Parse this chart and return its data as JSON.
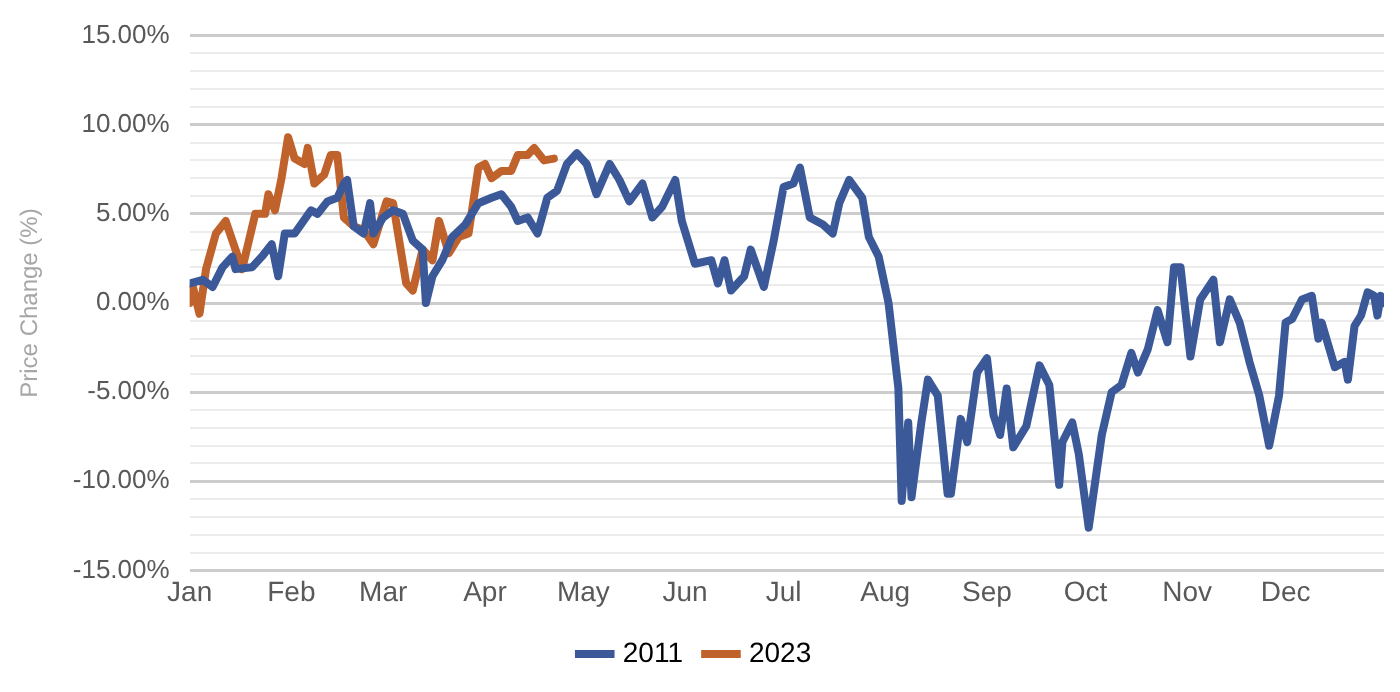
{
  "chart_data": {
    "type": "line",
    "ylabel": "Price Change (%)",
    "xlim": [
      "--01-01",
      "--12-31"
    ],
    "xticks": [
      {
        "value": "--01-01",
        "label": "Jan"
      },
      {
        "value": "--02-01",
        "label": "Feb"
      },
      {
        "value": "--03-01",
        "label": "Mar"
      },
      {
        "value": "--04-01",
        "label": "Apr"
      },
      {
        "value": "--05-01",
        "label": "May"
      },
      {
        "value": "--06-01",
        "label": "Jun"
      },
      {
        "value": "--07-01",
        "label": "Jul"
      },
      {
        "value": "--08-01",
        "label": "Aug"
      },
      {
        "value": "--09-01",
        "label": "Sep"
      },
      {
        "value": "--10-01",
        "label": "Oct"
      },
      {
        "value": "--11-01",
        "label": "Nov"
      },
      {
        "value": "--12-01",
        "label": "Dec"
      }
    ],
    "ylim": [
      -15,
      15
    ],
    "yticks": [
      {
        "value": -15,
        "label": "-15.00%"
      },
      {
        "value": -14,
        "label": null
      },
      {
        "value": -13,
        "label": null
      },
      {
        "value": -12,
        "label": null
      },
      {
        "value": -11,
        "label": null
      },
      {
        "value": -10,
        "label": "-10.00%"
      },
      {
        "value": -9,
        "label": null
      },
      {
        "value": -8,
        "label": null
      },
      {
        "value": -7,
        "label": null
      },
      {
        "value": -6,
        "label": null
      },
      {
        "value": -5,
        "label": "-5.00%"
      },
      {
        "value": -4,
        "label": null
      },
      {
        "value": -3,
        "label": null
      },
      {
        "value": -2,
        "label": null
      },
      {
        "value": -1,
        "label": null
      },
      {
        "value": 0,
        "label": "0.00%"
      },
      {
        "value": 1,
        "label": null
      },
      {
        "value": 2,
        "label": null
      },
      {
        "value": 3,
        "label": null
      },
      {
        "value": 4,
        "label": null
      },
      {
        "value": 5,
        "label": "5.00%"
      },
      {
        "value": 6,
        "label": null
      },
      {
        "value": 7,
        "label": null
      },
      {
        "value": 8,
        "label": null
      },
      {
        "value": 9,
        "label": null
      },
      {
        "value": 10,
        "label": "10.00%"
      },
      {
        "value": 11,
        "label": null
      },
      {
        "value": 12,
        "label": null
      },
      {
        "value": 13,
        "label": null
      },
      {
        "value": 14,
        "label": null
      },
      {
        "value": 15,
        "label": "15.00%"
      }
    ],
    "grid": "y",
    "legend": "bottom",
    "marker": "none",
    "line_style": "solid",
    "series": [
      {
        "name": "2011",
        "color": "#3b5998",
        "x": [
          "--01-01",
          "--01-05",
          "--01-08",
          "--01-11",
          "--01-14",
          "--01-15",
          "--01-20",
          "--01-23",
          "--01-26",
          "--01-28",
          "--01-30",
          "--02-02",
          "--02-07",
          "--02-09",
          "--02-12",
          "--02-15",
          "--02-17",
          "--02-18",
          "--02-20",
          "--02-23",
          "--02-25",
          "--02-26",
          "--03-01",
          "--03-04",
          "--03-07",
          "--03-10",
          "--03-13",
          "--03-14",
          "--03-16",
          "--03-19",
          "--03-22",
          "--03-26",
          "--03-30",
          "--04-03",
          "--04-06",
          "--04-09",
          "--04-11",
          "--04-14",
          "--04-17",
          "--04-20",
          "--04-23",
          "--04-26",
          "--04-29",
          "--05-02",
          "--05-05",
          "--05-09",
          "--05-12",
          "--05-15",
          "--05-19",
          "--05-22",
          "--05-25",
          "--05-29",
          "--05-31",
          "--06-04",
          "--06-09",
          "--06-11",
          "--06-13",
          "--06-15",
          "--06-19",
          "--06-21",
          "--06-25",
          "--06-28",
          "--07-01",
          "--07-04",
          "--07-06",
          "--07-09",
          "--07-13",
          "--07-16",
          "--07-18",
          "--07-21",
          "--07-25",
          "--07-27",
          "--07-30",
          "--08-02",
          "--08-05",
          "--08-06",
          "--08-08",
          "--08-09",
          "--08-12",
          "--08-14",
          "--08-17",
          "--08-20",
          "--08-21",
          "--08-24",
          "--08-26",
          "--08-29",
          "--09-01",
          "--09-03",
          "--09-05",
          "--09-07",
          "--09-09",
          "--09-13",
          "--09-17",
          "--09-20",
          "--09-23",
          "--09-24",
          "--09-27",
          "--09-29",
          "--10-02",
          "--10-06",
          "--10-09",
          "--10-12",
          "--10-15",
          "--10-17",
          "--10-20",
          "--10-23",
          "--10-26",
          "--10-28",
          "--10-30",
          "--11-02",
          "--11-05",
          "--11-09",
          "--11-11",
          "--11-14",
          "--11-17",
          "--11-20",
          "--11-23",
          "--11-26",
          "--11-29",
          "--12-01",
          "--12-03",
          "--12-06",
          "--12-09",
          "--12-11",
          "--12-12",
          "--12-16",
          "--12-19",
          "--12-20",
          "--12-22",
          "--12-24",
          "--12-26",
          "--12-28",
          "--12-29",
          "--12-30",
          "--12-31"
        ],
        "values": [
          1.1,
          1.3,
          0.9,
          2.0,
          2.6,
          1.9,
          2.0,
          2.6,
          3.3,
          1.5,
          3.9,
          3.9,
          5.2,
          5.0,
          5.7,
          5.9,
          6.7,
          6.9,
          4.3,
          3.9,
          5.6,
          3.9,
          4.8,
          5.2,
          5.0,
          3.5,
          3.0,
          0.0,
          1.5,
          2.4,
          3.7,
          4.4,
          5.6,
          5.9,
          6.1,
          5.4,
          4.6,
          4.8,
          3.9,
          5.9,
          6.3,
          7.8,
          8.4,
          7.8,
          6.1,
          7.8,
          6.9,
          5.7,
          6.7,
          4.8,
          5.4,
          6.9,
          4.6,
          2.2,
          2.4,
          1.1,
          2.4,
          0.7,
          1.5,
          3.0,
          0.9,
          3.5,
          6.5,
          6.7,
          7.6,
          4.8,
          4.4,
          3.9,
          5.6,
          6.9,
          5.9,
          3.7,
          2.6,
          0.0,
          -4.8,
          -11.1,
          -6.7,
          -10.9,
          -6.7,
          -4.3,
          -5.2,
          -10.7,
          -10.7,
          -6.5,
          -7.8,
          -3.9,
          -3.1,
          -6.3,
          -7.4,
          -4.8,
          -8.1,
          -6.9,
          -3.5,
          -4.6,
          -10.2,
          -7.8,
          -6.7,
          -8.5,
          -12.6,
          -7.4,
          -5.0,
          -4.6,
          -2.8,
          -3.9,
          -2.6,
          -0.4,
          -2.2,
          2.0,
          2.0,
          -3.0,
          0.2,
          1.3,
          -2.2,
          0.2,
          -1.1,
          -3.3,
          -5.2,
          -8.0,
          -5.2,
          -1.1,
          -0.9,
          0.2,
          0.4,
          -2.0,
          -1.1,
          -3.6,
          -3.3,
          -4.3,
          -1.3,
          -0.7,
          0.6,
          0.4,
          -0.7,
          0.4,
          0.0
        ]
      },
      {
        "name": "2023",
        "color": "#c0622b",
        "x": [
          "--01-01",
          "--01-02",
          "--01-04",
          "--01-06",
          "--01-09",
          "--01-12",
          "--01-17",
          "--01-21",
          "--01-24",
          "--01-25",
          "--01-27",
          "--01-29",
          "--01-31",
          "--02-02",
          "--02-05",
          "--02-06",
          "--02-08",
          "--02-11",
          "--02-13",
          "--02-15",
          "--02-17",
          "--02-20",
          "--02-23",
          "--02-26",
          "--03-02",
          "--03-04",
          "--03-08",
          "--03-10",
          "--03-13",
          "--03-16",
          "--03-18",
          "--03-21",
          "--03-24",
          "--03-27",
          "--03-30",
          "--04-01",
          "--04-03",
          "--04-06",
          "--04-09",
          "--04-11",
          "--04-14",
          "--04-16",
          "--04-19",
          "--04-22"
        ],
        "values": [
          0.0,
          0.9,
          -0.6,
          1.9,
          3.9,
          4.6,
          1.9,
          5.0,
          5.0,
          6.1,
          5.2,
          7.0,
          9.3,
          8.1,
          7.8,
          8.7,
          6.7,
          7.2,
          8.3,
          8.3,
          4.8,
          4.3,
          4.1,
          3.3,
          5.7,
          5.6,
          1.1,
          0.7,
          3.0,
          2.4,
          4.6,
          2.8,
          3.7,
          3.9,
          7.6,
          7.8,
          7.0,
          7.4,
          7.4,
          8.3,
          8.3,
          8.7,
          8.0,
          8.1
        ]
      }
    ]
  }
}
